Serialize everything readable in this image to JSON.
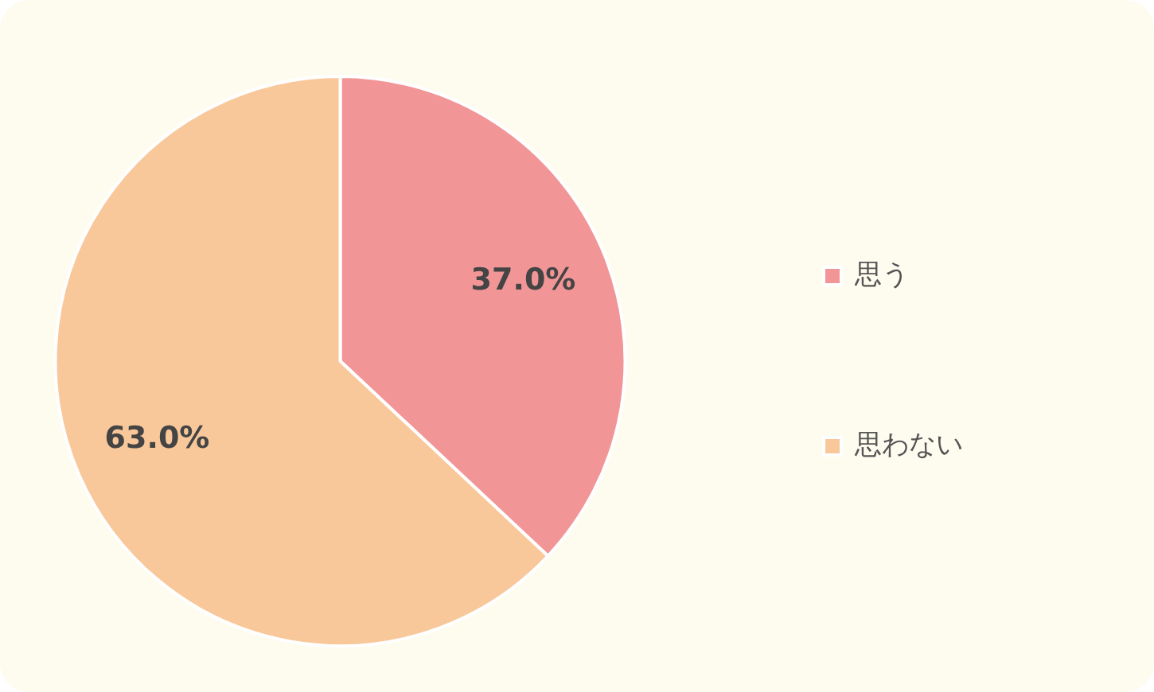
{
  "chart_data": {
    "type": "pie",
    "categories": [
      "思う",
      "思わない"
    ],
    "values": [
      37.0,
      63.0
    ],
    "colors": [
      "#f29596",
      "#f8c89a"
    ],
    "value_labels": [
      "37.0%",
      "63.0%"
    ],
    "legend": "right"
  }
}
